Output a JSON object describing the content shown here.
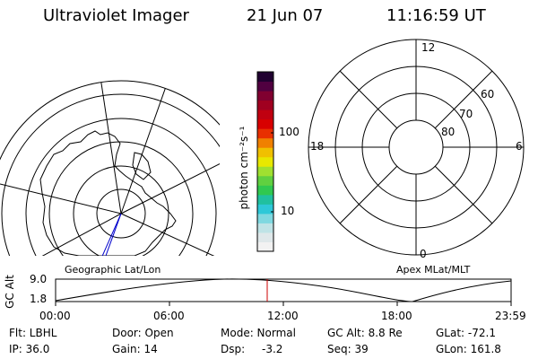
{
  "header": {
    "instrument": "Ultraviolet Imager",
    "date": "21 Jun 07",
    "time": "11:16:59 UT"
  },
  "left_map": {
    "label": "Geographic Lat/Lon"
  },
  "colorbar": {
    "unit": "photon cm⁻²s⁻¹",
    "tick_100": "100",
    "tick_10": "10",
    "colors": [
      "#f2f2f2",
      "#dfe8ea",
      "#bfe3e6",
      "#7fd8e0",
      "#2ec8d8",
      "#20c0a0",
      "#30c850",
      "#60d040",
      "#a0e030",
      "#e8e800",
      "#f0c000",
      "#f08000",
      "#e83000",
      "#d80000",
      "#c00010",
      "#a00020",
      "#800030",
      "#500040",
      "#200030"
    ]
  },
  "polar": {
    "label": "Apex MLat/MLT",
    "mlt_12": "12",
    "mlt_18": "18",
    "mlt_6": "6",
    "mlt_0": "0",
    "lat_60": "60",
    "lat_70": "70",
    "lat_80": "80"
  },
  "altitude_plot": {
    "ylabel": "GC Alt",
    "y_high": "9.0",
    "y_low": "1.8",
    "x_ticks": [
      "00:00",
      "06:00",
      "12:00",
      "18:00",
      "23:59"
    ],
    "current_time_marker_color": "#cc0000"
  },
  "footer": {
    "filter": "Flt: LBHL",
    "ip": "IP: 36.0",
    "door": "Door: Open",
    "gain": "Gain: 14",
    "mode": "Mode: Normal",
    "dsp_label": "Dsp:",
    "dsp_value": "-3.2",
    "gc_alt": "GC Alt: 8.8 Re",
    "seq": "Seq: 39",
    "glat": "GLat: -72.1",
    "glon": "GLon: 161.8"
  }
}
